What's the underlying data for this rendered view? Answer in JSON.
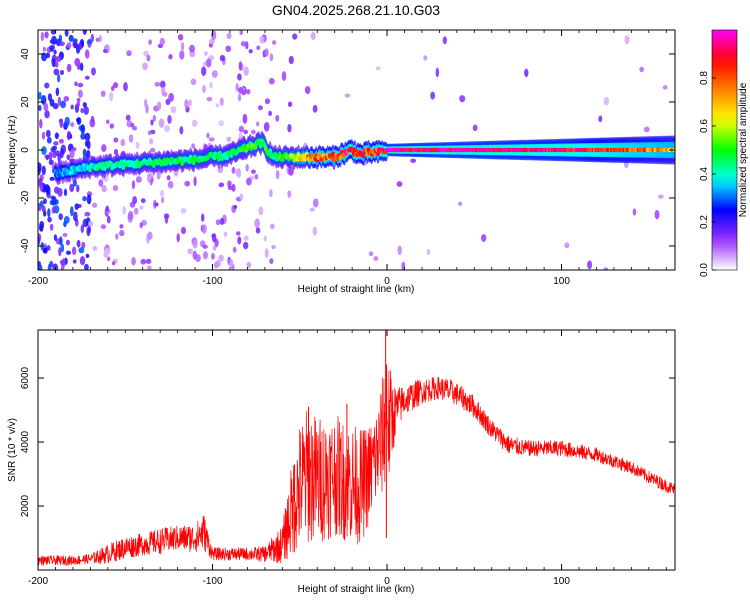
{
  "figure": {
    "title": "GN04.2025.268.21.10.G03"
  },
  "chart_data": [
    {
      "type": "heatmap",
      "xlabel": "Height of straight line (km)",
      "ylabel": "Frequency (Hz)",
      "xlim": [
        -200,
        165
      ],
      "ylim": [
        -50,
        50
      ],
      "xticks": [
        -200,
        -100,
        0,
        100
      ],
      "yticks": [
        -40,
        -20,
        0,
        20,
        40
      ],
      "colorbar": {
        "label": "Normalized spectral amplitude",
        "range": [
          0.0,
          1.0
        ],
        "ticks": [
          "0.0",
          "0.2",
          "0.4",
          "0.6",
          "0.8"
        ],
        "colors": [
          "#ffffff",
          "#9b30ff",
          "#0000ff",
          "#00ffff",
          "#00ff00",
          "#ffff00",
          "#ff8000",
          "#ff0000",
          "#ff00ff"
        ]
      },
      "ridge": {
        "x": [
          -190,
          -170,
          -150,
          -130,
          -110,
          -90,
          -80,
          -72,
          -65,
          -55,
          -45,
          -30,
          -20,
          -15,
          -10,
          -5,
          0,
          50,
          100,
          165
        ],
        "y": [
          -10,
          -7,
          -6,
          -5,
          -4,
          -2,
          1,
          3,
          -3,
          -3,
          -3,
          -3,
          0,
          -2,
          -1,
          -1,
          0,
          0,
          0,
          0
        ],
        "amplitude": [
          0.3,
          0.4,
          0.42,
          0.45,
          0.45,
          0.45,
          0.5,
          0.5,
          0.45,
          0.55,
          0.75,
          0.8,
          0.9,
          0.8,
          0.85,
          0.85,
          0.95,
          0.95,
          0.92,
          0.7
        ]
      }
    },
    {
      "type": "line",
      "xlabel": "Height of straight line (km)",
      "ylabel": "SNR (10 * v/v)",
      "xlim": [
        -200,
        165
      ],
      "ylim": [
        0,
        7500
      ],
      "xticks": [
        -200,
        -100,
        0,
        100
      ],
      "yticks": [
        2000,
        4000,
        6000
      ],
      "series": [
        {
          "color": "#ff0000",
          "x": [
            -200,
            -180,
            -170,
            -160,
            -150,
            -140,
            -130,
            -120,
            -110,
            -105,
            -100,
            -90,
            -80,
            -70,
            -60,
            -55,
            -50,
            -45,
            -40,
            -35,
            -30,
            -25,
            -20,
            -15,
            -10,
            -5,
            -2,
            0,
            1,
            5,
            10,
            20,
            30,
            35,
            40,
            50,
            60,
            70,
            80,
            100,
            120,
            140,
            150,
            165
          ],
          "y": [
            300,
            300,
            350,
            500,
            700,
            800,
            900,
            1000,
            1000,
            1200,
            500,
            500,
            500,
            500,
            800,
            1800,
            2600,
            3000,
            2800,
            2900,
            3000,
            2800,
            2700,
            2600,
            3000,
            3700,
            4300,
            5600,
            4500,
            5000,
            5300,
            5600,
            5700,
            5600,
            5500,
            5100,
            4400,
            3900,
            3800,
            3800,
            3600,
            3200,
            2900,
            2500
          ],
          "spread": [
            150,
            150,
            150,
            300,
            350,
            350,
            400,
            400,
            450,
            600,
            200,
            200,
            200,
            250,
            600,
            1400,
            2000,
            2200,
            2000,
            2000,
            1900,
            1900,
            1900,
            1800,
            1600,
            1600,
            2000,
            2600,
            2000,
            700,
            500,
            400,
            350,
            400,
            350,
            350,
            300,
            300,
            250,
            250,
            220,
            200,
            200,
            200
          ],
          "peaks": [
            {
              "x": -0.8,
              "y": 7500
            },
            {
              "x": -0.4,
              "y": 1000
            },
            {
              "x": -23,
              "y": 5200
            },
            {
              "x": -45,
              "y": 5100
            },
            {
              "x": -53,
              "y": 3300
            }
          ]
        }
      ]
    }
  ]
}
